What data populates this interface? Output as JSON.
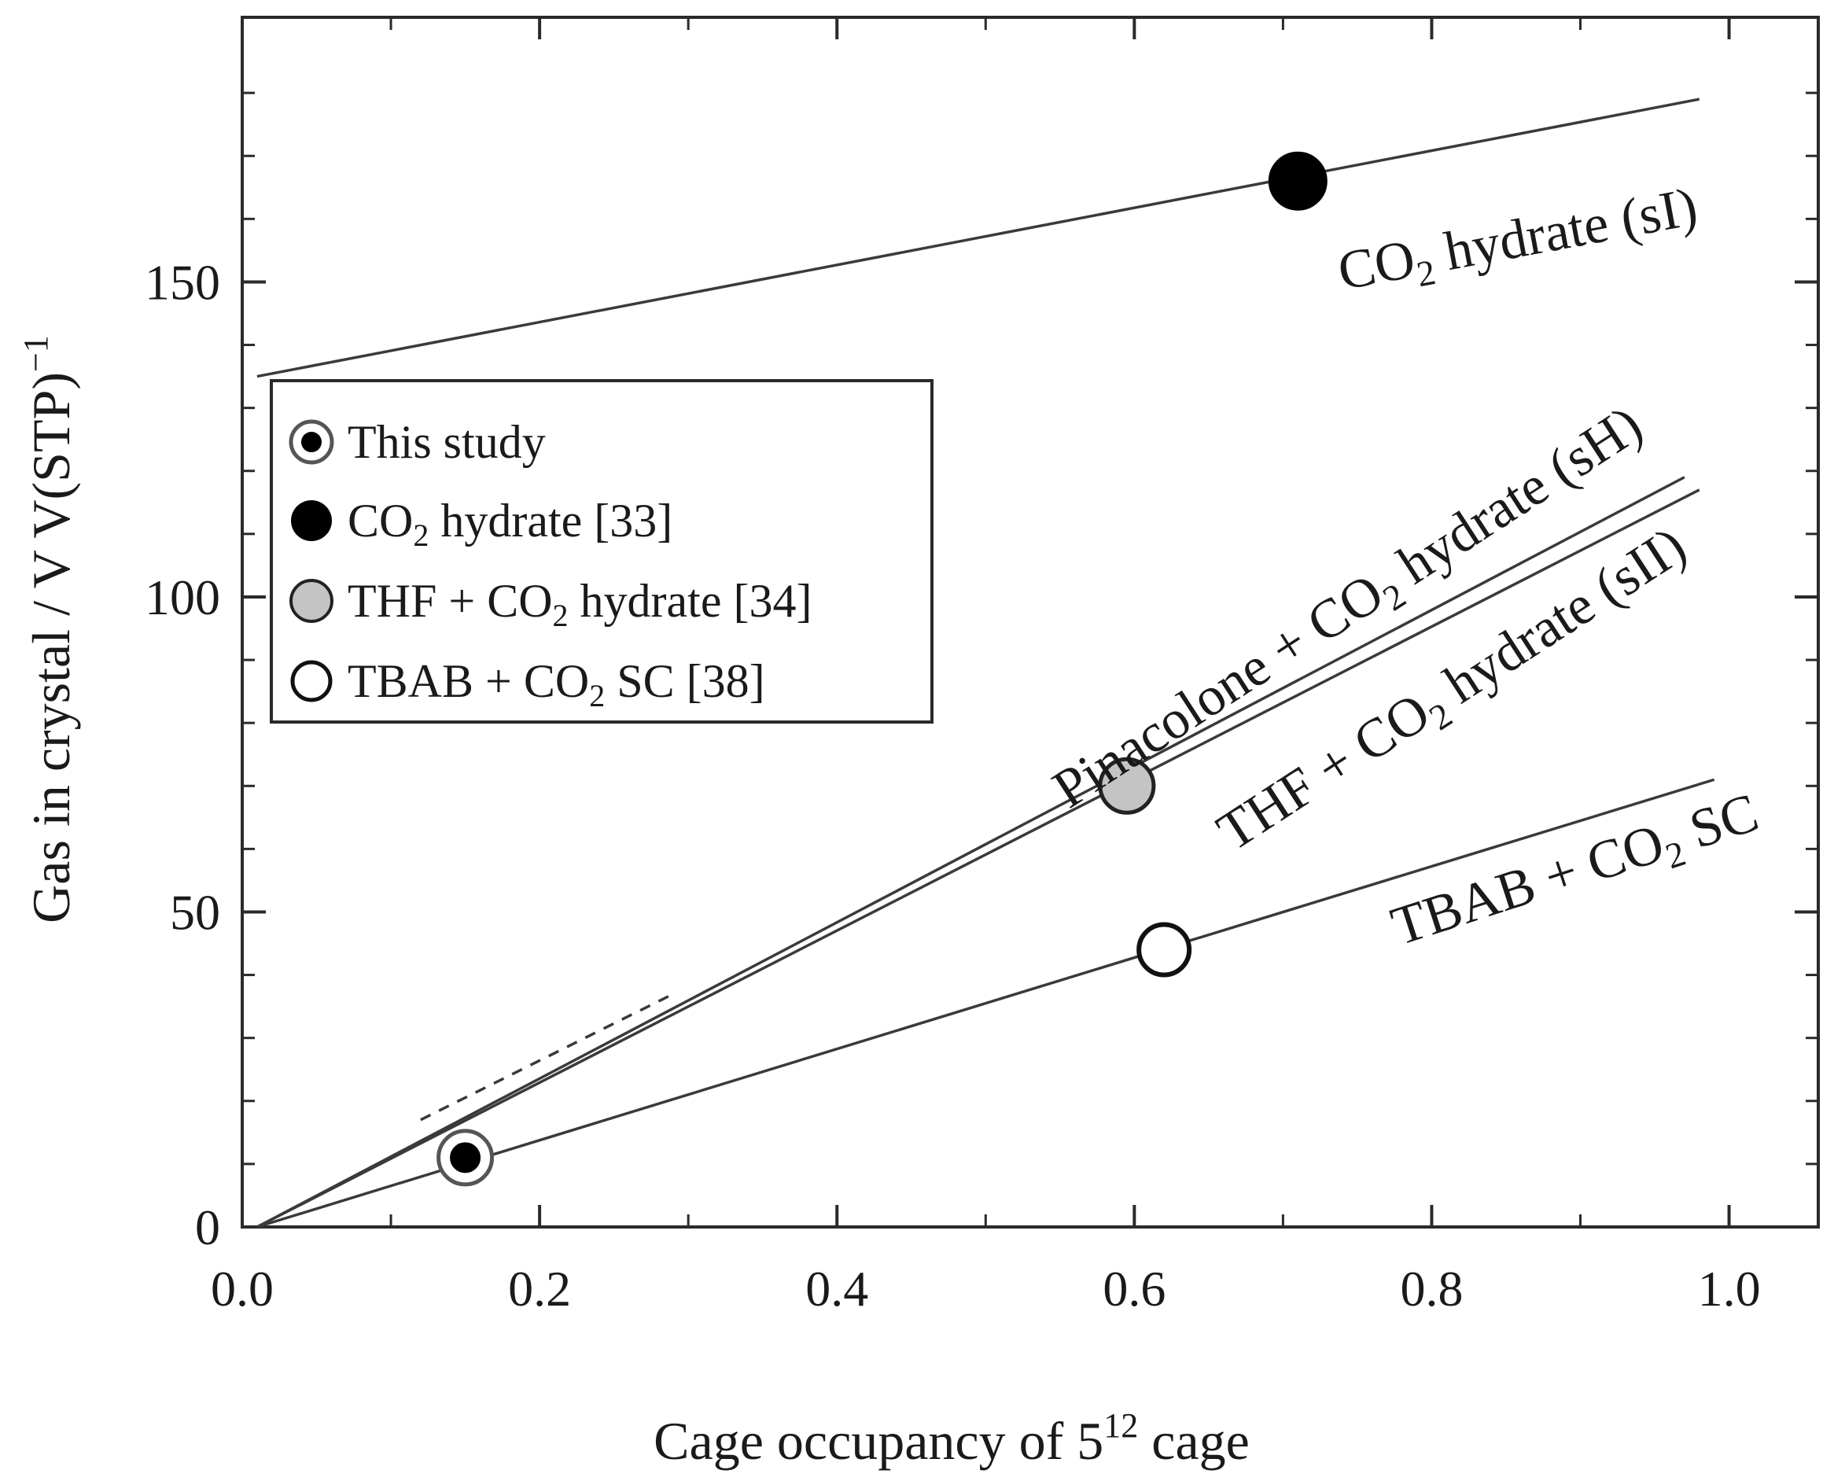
{
  "chart_data": {
    "type": "line",
    "xlabel": "Cage occupancy of 5",
    "xlabel_sup": "12",
    "xlabel_suffix": " cage",
    "ylabel": "Gas in crystal / V V(STP)",
    "ylabel_sup": "−1",
    "xlim": [
      0.0,
      1.06
    ],
    "ylim": [
      0,
      192
    ],
    "xticks": [
      0.0,
      0.2,
      0.4,
      0.6,
      0.8,
      1.0
    ],
    "xtick_labels": [
      "0.0",
      "0.2",
      "0.4",
      "0.6",
      "0.8",
      "1.0"
    ],
    "xminor": [
      0.1,
      0.3,
      0.5,
      0.7,
      0.9
    ],
    "yticks": [
      0,
      50,
      100,
      150
    ],
    "ytick_labels": [
      "0",
      "50",
      "100",
      "150"
    ],
    "yminor": [
      10,
      20,
      30,
      40,
      60,
      70,
      80,
      90,
      110,
      120,
      130,
      140,
      160,
      170,
      180
    ],
    "grid": false,
    "legend_position": "upper-left",
    "lines": [
      {
        "label": "CO2 hydrate (sI)",
        "x": [
          0.01,
          0.98
        ],
        "y": [
          135,
          179
        ],
        "style": "solid"
      },
      {
        "label": "Pinacolone + CO2 hydrate (sH)",
        "x": [
          0.01,
          0.97
        ],
        "y": [
          0,
          119
        ],
        "style": "solid"
      },
      {
        "label": "THF + CO2 hydrate (sII)",
        "x": [
          0.01,
          0.98
        ],
        "y": [
          0,
          117
        ],
        "style": "solid"
      },
      {
        "label": "TBAB + CO2 SC",
        "x": [
          0.01,
          0.99
        ],
        "y": [
          0,
          71
        ],
        "style": "solid"
      },
      {
        "label": "dashed",
        "x": [
          0.12,
          0.29
        ],
        "y": [
          17,
          37
        ],
        "style": "dashed"
      }
    ],
    "series": [
      {
        "name": "This study",
        "marker": "target",
        "x": [
          0.15
        ],
        "y": [
          11
        ]
      },
      {
        "name": "CO2 hydrate [33]",
        "marker": "filled-black",
        "x": [
          0.71
        ],
        "y": [
          166
        ]
      },
      {
        "name": "THF + CO2 hydrate [34]",
        "marker": "filled-gray",
        "x": [
          0.595
        ],
        "y": [
          70
        ]
      },
      {
        "name": "TBAB + CO2 SC [38]",
        "marker": "open",
        "x": [
          0.62
        ],
        "y": [
          44
        ]
      }
    ],
    "legend": [
      {
        "marker": "target",
        "text": "This study",
        "sub": "",
        "after": ""
      },
      {
        "marker": "filled-black",
        "text": "CO",
        "sub": "2",
        "after": " hydrate [33]"
      },
      {
        "marker": "filled-gray",
        "text": "THF + CO",
        "sub": "2",
        "after": " hydrate [34]"
      },
      {
        "marker": "open",
        "text": "TBAB  + CO",
        "sub": "2",
        "after": " SC [38]"
      }
    ],
    "annotations": [
      {
        "key": "sI",
        "x": 0.86,
        "y": 154,
        "angle": -10.5,
        "text": "CO",
        "sub": "2",
        "after": " hydrate (sI)"
      },
      {
        "key": "sH",
        "x": 0.75,
        "y": 96,
        "angle": -33,
        "text": "Pinacolone + CO",
        "sub": "2",
        "after": " hydrate (sH)"
      },
      {
        "key": "sII",
        "x": 0.82,
        "y": 83,
        "angle": -33,
        "text": "THF + CO",
        "sub": "2",
        "after": " hydrate (sII)"
      },
      {
        "key": "sc",
        "x": 0.9,
        "y": 54,
        "angle": -18,
        "text": "TBAB + CO",
        "sub": "2",
        "after": " SC"
      }
    ]
  }
}
